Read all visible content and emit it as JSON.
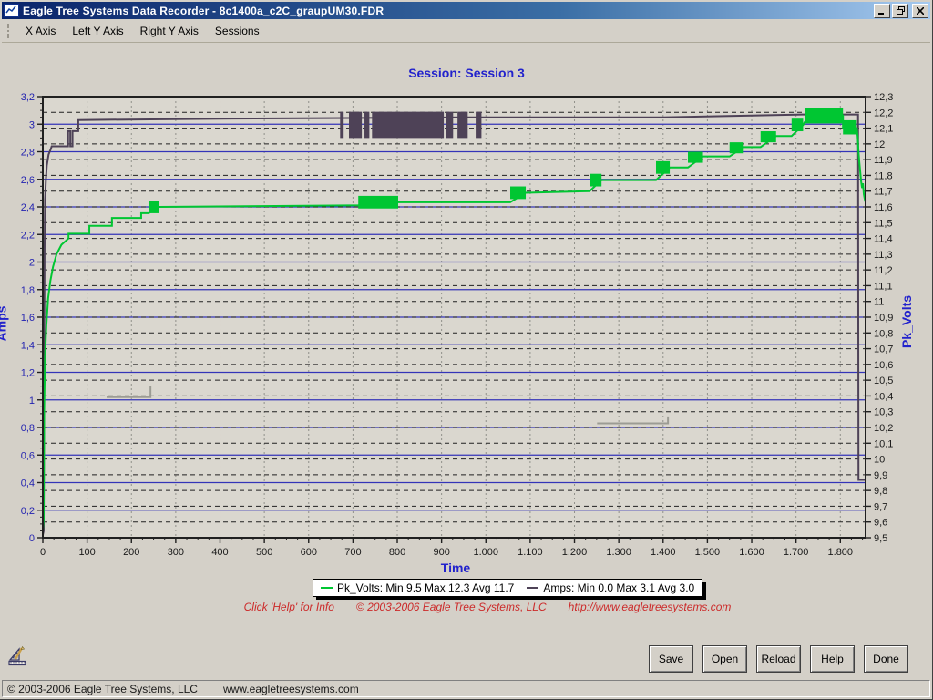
{
  "window": {
    "title": "Eagle Tree Systems Data Recorder - 8c1400a_c2C_graupUM30.FDR"
  },
  "menu": {
    "items": [
      {
        "label": "X Axis",
        "accel": "X"
      },
      {
        "label": "Left Y Axis",
        "accel": "L"
      },
      {
        "label": "Right Y Axis",
        "accel": "R"
      },
      {
        "label": "Sessions",
        "accel": ""
      }
    ]
  },
  "chart_data": {
    "type": "line",
    "title": "Session: Session 3",
    "xlabel": "Time",
    "colors": {
      "grid_blue": "#3434b8",
      "grid_dash": "#202020",
      "grid_vertical": "#90908a",
      "frame": "#202020",
      "plot_bg": "#dad7cf",
      "left_label": "#2323b0",
      "right_label": "#1a1a1a",
      "artifact": "#9c9c94"
    },
    "x_axis": {
      "min": 0,
      "max": 1857,
      "major_step": 100,
      "minor_step": 25,
      "tick_labels": [
        "0",
        "100",
        "200",
        "300",
        "400",
        "500",
        "600",
        "700",
        "800",
        "900",
        "1.000",
        "1.100",
        "1.200",
        "1.300",
        "1.400",
        "1.500",
        "1.600",
        "1.700",
        "1.800"
      ]
    },
    "left_axis": {
      "label": "Amps",
      "min": 0,
      "max": 3.2,
      "major_step": 0.2,
      "minor_step": 0.05,
      "tick_labels": [
        "0",
        "0,2",
        "0,4",
        "0,6",
        "0,8",
        "1",
        "1,2",
        "1,4",
        "1,6",
        "1,8",
        "2",
        "2,2",
        "2,4",
        "2,6",
        "2,8",
        "3",
        "3,2"
      ]
    },
    "right_axis": {
      "label": "Pk_Volts",
      "min": 9.5,
      "max": 12.3,
      "major_step": 0.1,
      "tick_labels": [
        "9,5",
        "9,6",
        "9,7",
        "9,8",
        "9,9",
        "10",
        "10,1",
        "10,2",
        "10,3",
        "10,4",
        "10,5",
        "10,6",
        "10,7",
        "10,8",
        "10,9",
        "11",
        "11,1",
        "11,2",
        "11,3",
        "11,4",
        "11,5",
        "11,6",
        "11,7",
        "11,8",
        "11,9",
        "12",
        "12,1",
        "12,2",
        "12,3"
      ]
    },
    "series": [
      {
        "name": "Pk_Volts",
        "axis": "right",
        "color": "#00c632",
        "min": 9.5,
        "max": 12.3,
        "avg": 11.7,
        "points": [
          [
            0,
            9.55
          ],
          [
            2,
            9.62
          ],
          [
            3,
            10.3
          ],
          [
            5,
            10.65
          ],
          [
            8,
            10.85
          ],
          [
            12,
            11.02
          ],
          [
            17,
            11.13
          ],
          [
            23,
            11.22
          ],
          [
            31,
            11.3
          ],
          [
            42,
            11.36
          ],
          [
            58,
            11.4
          ],
          [
            58,
            11.43
          ],
          [
            105,
            11.43
          ],
          [
            105,
            11.48
          ],
          [
            156,
            11.48
          ],
          [
            156,
            11.53
          ],
          [
            222,
            11.53
          ],
          [
            222,
            11.56
          ],
          [
            239,
            11.56
          ],
          [
            263,
            11.6
          ],
          [
            712,
            11.61
          ],
          [
            802,
            11.63
          ],
          [
            1055,
            11.63
          ],
          [
            1090,
            11.69
          ],
          [
            1234,
            11.7
          ],
          [
            1261,
            11.77
          ],
          [
            1384,
            11.77
          ],
          [
            1415,
            11.85
          ],
          [
            1456,
            11.85
          ],
          [
            1490,
            11.92
          ],
          [
            1550,
            11.92
          ],
          [
            1582,
            11.98
          ],
          [
            1620,
            11.98
          ],
          [
            1655,
            12.05
          ],
          [
            1690,
            12.05
          ],
          [
            1716,
            12.12
          ],
          [
            1720,
            12.14
          ],
          [
            1806,
            12.18
          ],
          [
            1806,
            12.1
          ],
          [
            1837,
            12.1
          ],
          [
            1839,
            12.05
          ],
          [
            1841,
            11.95
          ],
          [
            1843,
            11.88
          ],
          [
            1845,
            11.82
          ],
          [
            1847,
            11.76
          ],
          [
            1849,
            11.72
          ],
          [
            1851,
            11.75
          ],
          [
            1853,
            11.68
          ],
          [
            1855,
            11.65
          ],
          [
            1857,
            11.63
          ]
        ],
        "bands": [
          [
            239,
            263,
            11.56,
            11.64
          ],
          [
            712,
            802,
            11.59,
            11.67
          ],
          [
            1055,
            1090,
            11.65,
            11.73
          ],
          [
            1234,
            1261,
            11.73,
            11.81
          ],
          [
            1384,
            1415,
            11.81,
            11.89
          ],
          [
            1456,
            1490,
            11.88,
            11.95
          ],
          [
            1550,
            1582,
            11.94,
            12.01
          ],
          [
            1620,
            1655,
            12.01,
            12.08
          ],
          [
            1690,
            1716,
            12.08,
            12.16
          ],
          [
            1720,
            1806,
            12.13,
            12.23
          ],
          [
            1806,
            1837,
            12.06,
            12.15
          ]
        ]
      },
      {
        "name": "Amps",
        "axis": "left",
        "color": "#4e4257",
        "min": 0.0,
        "max": 3.1,
        "avg": 3.0,
        "points": [
          [
            0,
            0.02
          ],
          [
            2,
            0.05
          ],
          [
            3,
            1.2
          ],
          [
            4,
            2.1
          ],
          [
            5,
            2.45
          ],
          [
            7,
            2.6
          ],
          [
            9,
            2.7
          ],
          [
            13,
            2.78
          ],
          [
            18,
            2.82
          ],
          [
            20,
            2.84
          ],
          [
            57,
            2.84
          ],
          [
            57,
            2.95
          ],
          [
            62,
            2.95
          ],
          [
            62,
            2.84
          ],
          [
            67,
            2.84
          ],
          [
            67,
            2.95
          ],
          [
            80,
            2.95
          ],
          [
            80,
            3.03
          ],
          [
            400,
            3.04
          ],
          [
            990,
            3.05
          ],
          [
            1400,
            3.05
          ],
          [
            1714,
            3.07
          ],
          [
            1840,
            3.07
          ],
          [
            1841,
            0.42
          ],
          [
            1857,
            0.42
          ]
        ],
        "bands": [
          [
            671,
            679,
            2.9,
            3.09
          ],
          [
            691,
            720,
            2.9,
            3.09
          ],
          [
            726,
            737,
            2.9,
            3.09
          ],
          [
            743,
            905,
            2.9,
            3.09
          ],
          [
            911,
            926,
            2.9,
            3.09
          ],
          [
            936,
            959,
            2.9,
            3.09
          ],
          [
            977,
            990,
            2.9,
            3.09
          ]
        ]
      }
    ],
    "artifact_segments": {
      "axis": "left",
      "paths": [
        [
          [
            144,
            1.02
          ],
          [
            243,
            1.02
          ],
          [
            243,
            1.1
          ]
        ],
        [
          [
            1251,
            0.83
          ],
          [
            1411,
            0.83
          ],
          [
            1411,
            0.88
          ]
        ]
      ]
    }
  },
  "legend": {
    "series": [
      {
        "name": "Pk_Volts",
        "stats": "Min 9.5 Max 12.3 Avg 11.7",
        "color": "#00c632"
      },
      {
        "name": "Amps",
        "stats": "Min 0.0 Max 3.1 Avg 3.0",
        "color": "#4e4257"
      }
    ]
  },
  "footer": {
    "parts": [
      "Click 'Help' for Info",
      "© 2003-2006 Eagle Tree Systems, LLC",
      "http://www.eagletreesystems.com"
    ]
  },
  "buttons": [
    "Save",
    "Open",
    "Reload",
    "Help",
    "Done"
  ],
  "statusbar": {
    "copyright": "© 2003-2006 Eagle Tree Systems, LLC",
    "url": "www.eagletreesystems.com"
  }
}
